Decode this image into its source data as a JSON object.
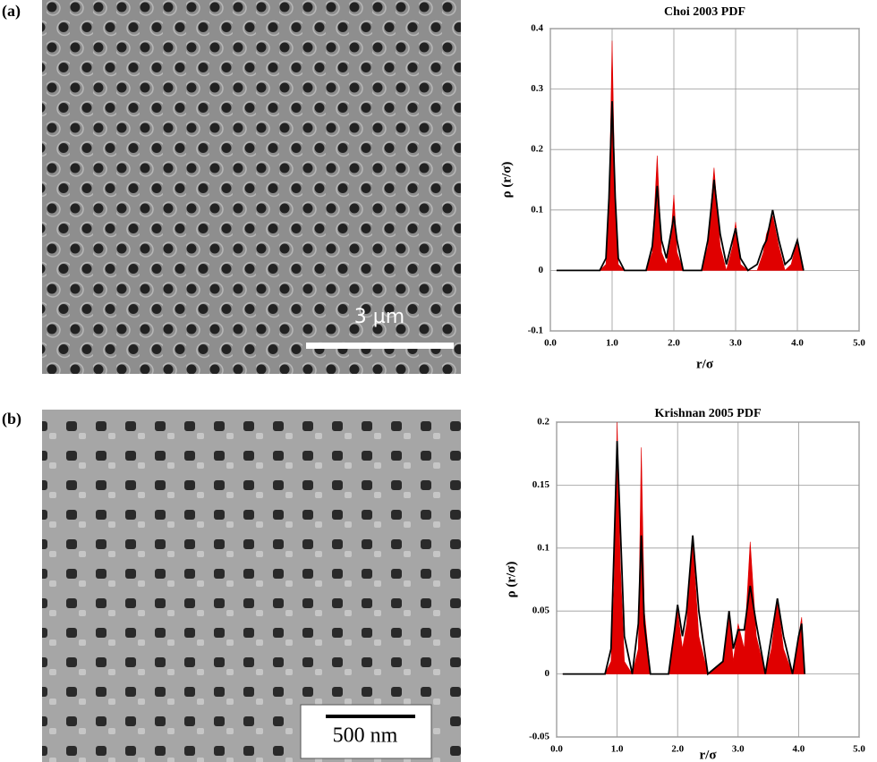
{
  "panels": [
    {
      "label": "(a)",
      "scale_bar": "3 µm"
    },
    {
      "label": "(b)",
      "scale_bar": "500 nm"
    }
  ],
  "chart_data": [
    {
      "type": "line",
      "title": "Choi 2003 PDF",
      "x_label": "r/σ",
      "y_label": "ρ (r/σ)",
      "xlim": [
        0,
        5
      ],
      "xticks": [
        {
          "value": 0,
          "label": "0.0"
        },
        {
          "value": 1,
          "label": "1.0"
        },
        {
          "value": 2,
          "label": "2.0"
        },
        {
          "value": 3,
          "label": "3.0"
        },
        {
          "value": 4,
          "label": "4.0"
        },
        {
          "value": 5,
          "label": "5.0"
        }
      ],
      "ylim": [
        -0.1,
        0.4
      ],
      "yticks": [
        -0.1,
        0,
        0.1,
        0.2,
        0.3,
        0.4
      ],
      "grid": true,
      "x": [
        0.1,
        0.8,
        0.9,
        0.95,
        1.0,
        1.05,
        1.1,
        1.2,
        1.55,
        1.65,
        1.73,
        1.8,
        1.88,
        1.95,
        2.0,
        2.05,
        2.15,
        2.45,
        2.55,
        2.65,
        2.75,
        2.85,
        2.95,
        3.0,
        3.08,
        3.2,
        3.35,
        3.45,
        3.5,
        3.6,
        3.7,
        3.8,
        3.9,
        4.0,
        4.1
      ],
      "series": [
        {
          "color": "#e00000",
          "fill": true,
          "values": [
            0,
            0,
            0.01,
            0.09,
            0.38,
            0.1,
            0.01,
            0,
            0,
            0.03,
            0.19,
            0.03,
            0.01,
            0.05,
            0.125,
            0.03,
            0,
            0,
            0.04,
            0.17,
            0.04,
            0,
            0.04,
            0.08,
            0.01,
            0,
            0,
            0.03,
            0.06,
            0.09,
            0.04,
            0,
            0.01,
            0.05,
            0
          ]
        },
        {
          "color": "#000000",
          "fill": false,
          "values": [
            0,
            0,
            0.02,
            0.12,
            0.28,
            0.12,
            0.02,
            0,
            0,
            0.04,
            0.14,
            0.05,
            0.02,
            0.06,
            0.09,
            0.05,
            0,
            0,
            0.05,
            0.15,
            0.06,
            0.01,
            0.05,
            0.07,
            0.02,
            0,
            0.01,
            0.04,
            0.05,
            0.1,
            0.05,
            0.01,
            0.02,
            0.05,
            0
          ]
        }
      ]
    },
    {
      "type": "line",
      "title": "Krishnan 2005 PDF",
      "x_label": "r/σ",
      "y_label": "ρ (r/σ)",
      "xlim": [
        0,
        5
      ],
      "xticks": [
        {
          "value": 0,
          "label": "0.0"
        },
        {
          "value": 1,
          "label": "1.0"
        },
        {
          "value": 2,
          "label": "2.0"
        },
        {
          "value": 3,
          "label": "3.0"
        },
        {
          "value": 4,
          "label": "4.0"
        },
        {
          "value": 5,
          "label": "5.0"
        }
      ],
      "ylim": [
        -0.05,
        0.2
      ],
      "yticks": [
        -0.05,
        0,
        0.05,
        0.1,
        0.15,
        0.2
      ],
      "grid": true,
      "x": [
        0.1,
        0.8,
        0.9,
        0.95,
        1.0,
        1.05,
        1.12,
        1.25,
        1.35,
        1.4,
        1.45,
        1.55,
        1.85,
        1.95,
        2.0,
        2.08,
        2.15,
        2.25,
        2.35,
        2.5,
        2.75,
        2.85,
        2.92,
        3.0,
        3.1,
        3.2,
        3.3,
        3.45,
        3.55,
        3.65,
        3.75,
        3.9,
        4.0,
        4.05,
        4.1
      ],
      "series": [
        {
          "color": "#e00000",
          "fill": true,
          "values": [
            0,
            0,
            0.01,
            0.07,
            0.2,
            0.09,
            0.01,
            0,
            0.02,
            0.18,
            0.05,
            0,
            0,
            0.03,
            0.05,
            0.02,
            0.04,
            0.105,
            0.03,
            0,
            0.01,
            0.05,
            0.01,
            0.04,
            0.02,
            0.105,
            0.03,
            0,
            0.02,
            0.06,
            0.02,
            0,
            0.03,
            0.045,
            0
          ]
        },
        {
          "color": "#000000",
          "fill": false,
          "values": [
            0,
            0,
            0.02,
            0.1,
            0.185,
            0.12,
            0.03,
            0,
            0.04,
            0.11,
            0.04,
            0,
            0,
            0.035,
            0.055,
            0.03,
            0.05,
            0.11,
            0.05,
            0,
            0.01,
            0.05,
            0.02,
            0.035,
            0.035,
            0.07,
            0.04,
            0,
            0.03,
            0.06,
            0.03,
            0,
            0.03,
            0.04,
            0
          ]
        }
      ]
    }
  ]
}
